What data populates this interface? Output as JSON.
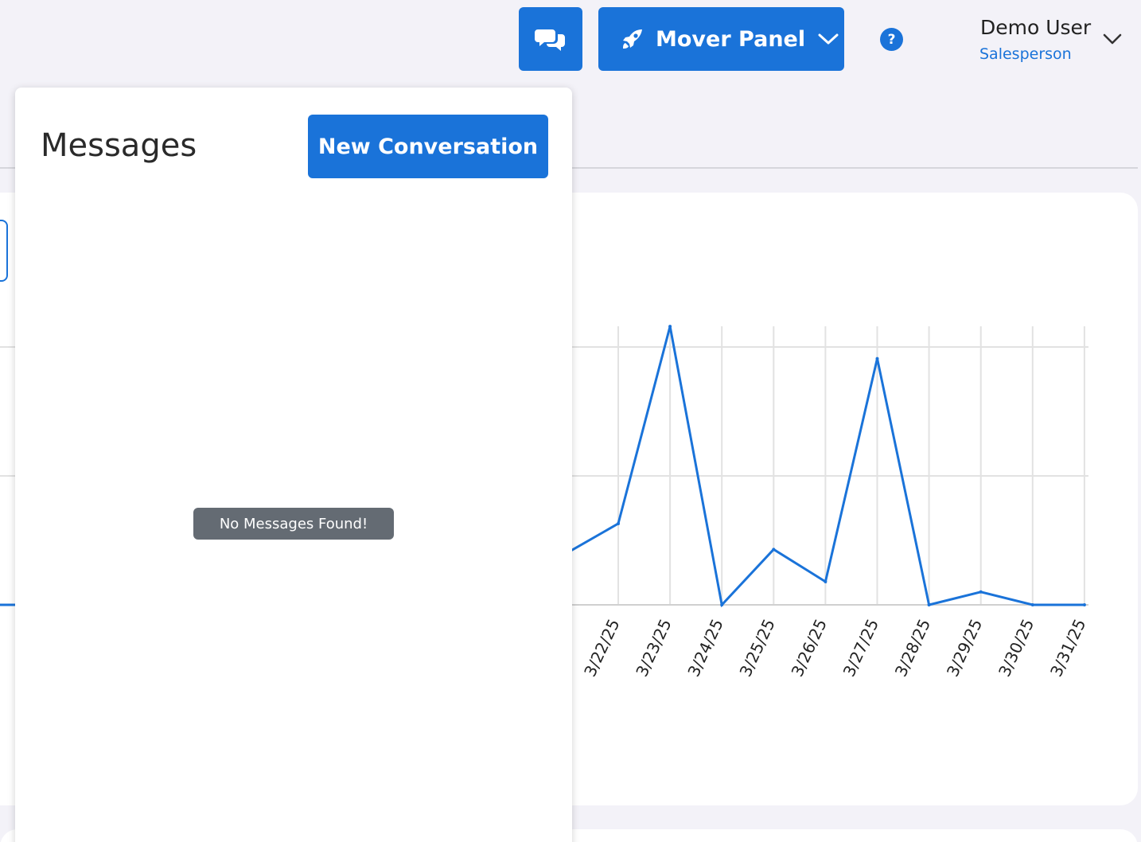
{
  "header": {
    "chat_icon": "chat-bubbles-icon",
    "mover_panel": {
      "label": "Mover Panel",
      "icon": "rocket-icon"
    },
    "help_label": "?",
    "user": {
      "name": "Demo User",
      "role": "Salesperson"
    }
  },
  "messages": {
    "title": "Messages",
    "new_conversation_label": "New Conversation",
    "empty_text": "No Messages Found!"
  },
  "colors": {
    "accent": "#1a73d9",
    "badge": "#646b73",
    "background": "#f3f2f8"
  },
  "chart_data": {
    "type": "line",
    "categories": [
      "3/22/25",
      "3/23/25",
      "3/24/25",
      "3/25/25",
      "3/26/25",
      "3/27/25",
      "3/28/25",
      "3/29/25",
      "3/30/25",
      "3/31/25"
    ],
    "series": [
      {
        "values": [
          0.63,
          2.16,
          0,
          0.43,
          0.18,
          1.91,
          0,
          0.1,
          0,
          0
        ]
      }
    ],
    "partial_start_value": 0.4,
    "ylim": [
      0,
      2
    ],
    "grid": true
  }
}
